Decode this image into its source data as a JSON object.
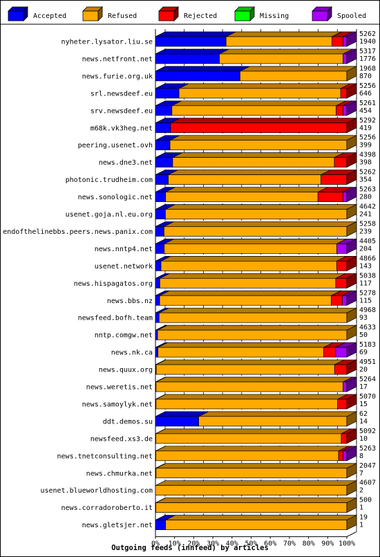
{
  "chart_data": {
    "type": "bar",
    "orientation": "horizontal",
    "stacked": true,
    "percent_axis": true,
    "xlabel": "Outgoing feeds (innfeed) by articles",
    "xticks": [
      "0%",
      "10%",
      "20%",
      "30%",
      "40%",
      "50%",
      "60%",
      "70%",
      "80%",
      "90%",
      "100%"
    ],
    "legend_position": "top",
    "legend": [
      {
        "name": "Accepted",
        "color": "#0000ff"
      },
      {
        "name": "Refused",
        "color": "#ffaa00"
      },
      {
        "name": "Rejected",
        "color": "#ff0000"
      },
      {
        "name": "Missing",
        "color": "#00ff00"
      },
      {
        "name": "Spooled",
        "color": "#aa00ff"
      }
    ],
    "rows": [
      {
        "host": "nyheter.lysator.liu.se",
        "total": 5262,
        "accepted": 1940,
        "segments_pct": [
          36.9,
          55.3,
          5.8,
          0,
          2.0
        ]
      },
      {
        "host": "news.netfront.net",
        "total": 5317,
        "accepted": 1776,
        "segments_pct": [
          33.4,
          64.6,
          0,
          0,
          2.0
        ]
      },
      {
        "host": "news.furie.org.uk",
        "total": 1968,
        "accepted": 870,
        "segments_pct": [
          44.2,
          55.8,
          0,
          0,
          0
        ]
      },
      {
        "host": "srl.newsdeef.eu",
        "total": 5256,
        "accepted": 646,
        "segments_pct": [
          12.3,
          84.5,
          3.2,
          0,
          0
        ]
      },
      {
        "host": "srv.newsdeef.eu",
        "total": 5261,
        "accepted": 454,
        "segments_pct": [
          8.6,
          85.8,
          3.6,
          0,
          2.0
        ]
      },
      {
        "host": "m68k.vk3heg.net",
        "total": 5292,
        "accepted": 419,
        "segments_pct": [
          7.9,
          0,
          92.1,
          0,
          0
        ]
      },
      {
        "host": "peering.usenet.ovh",
        "total": 5256,
        "accepted": 399,
        "segments_pct": [
          7.6,
          92.4,
          0,
          0,
          0
        ]
      },
      {
        "host": "news.dne3.net",
        "total": 4398,
        "accepted": 398,
        "segments_pct": [
          9.0,
          84.5,
          6.5,
          0,
          0
        ]
      },
      {
        "host": "photonic.trudheim.com",
        "total": 5262,
        "accepted": 354,
        "segments_pct": [
          6.7,
          79.8,
          13.5,
          0,
          0
        ]
      },
      {
        "host": "news.sonologic.net",
        "total": 5263,
        "accepted": 280,
        "segments_pct": [
          5.3,
          79.6,
          13.1,
          0,
          2.0
        ]
      },
      {
        "host": "usenet.goja.nl.eu.org",
        "total": 4642,
        "accepted": 241,
        "segments_pct": [
          5.2,
          94.8,
          0,
          0,
          0
        ]
      },
      {
        "host": "endofthelinebbs.peers.news.panix.com",
        "total": 5258,
        "accepted": 239,
        "segments_pct": [
          4.5,
          95.5,
          0,
          0,
          0
        ]
      },
      {
        "host": "news.nntp4.net",
        "total": 4405,
        "accepted": 204,
        "segments_pct": [
          4.6,
          90.1,
          0,
          0,
          5.3
        ]
      },
      {
        "host": "usenet.network",
        "total": 4866,
        "accepted": 143,
        "segments_pct": [
          2.9,
          91.8,
          5.3,
          0,
          0
        ]
      },
      {
        "host": "news.hispagatos.org",
        "total": 5038,
        "accepted": 117,
        "segments_pct": [
          2.3,
          91.9,
          5.8,
          0,
          0
        ]
      },
      {
        "host": "news.bbs.nz",
        "total": 5278,
        "accepted": 115,
        "segments_pct": [
          2.2,
          89.7,
          5.8,
          0,
          2.3
        ]
      },
      {
        "host": "newsfeed.bofh.team",
        "total": 4968,
        "accepted": 93,
        "segments_pct": [
          1.9,
          98.1,
          0,
          0,
          0
        ]
      },
      {
        "host": "nntp.comgw.net",
        "total": 4633,
        "accepted": 50,
        "segments_pct": [
          1.1,
          98.9,
          0,
          0,
          0
        ]
      },
      {
        "host": "news.nk.ca",
        "total": 5183,
        "accepted": 69,
        "segments_pct": [
          1.3,
          86.6,
          6.3,
          0,
          5.8
        ]
      },
      {
        "host": "news.quux.org",
        "total": 4951,
        "accepted": 20,
        "segments_pct": [
          0.4,
          93.2,
          6.4,
          0,
          0
        ]
      },
      {
        "host": "news.weretis.net",
        "total": 5264,
        "accepted": 17,
        "segments_pct": [
          0.3,
          97.7,
          0,
          0,
          2.0
        ]
      },
      {
        "host": "news.samoylyk.net",
        "total": 5070,
        "accepted": 15,
        "segments_pct": [
          0.3,
          94.9,
          4.8,
          0,
          0
        ]
      },
      {
        "host": "ddt.demos.su",
        "total": 62,
        "accepted": 14,
        "segments_pct": [
          22.6,
          77.4,
          0,
          0,
          0
        ]
      },
      {
        "host": "newsfeed.xs3.de",
        "total": 5092,
        "accepted": 10,
        "segments_pct": [
          0.2,
          96.9,
          2.9,
          0,
          0
        ]
      },
      {
        "host": "news.tnetconsulting.net",
        "total": 5263,
        "accepted": 8,
        "segments_pct": [
          0.2,
          95.5,
          2.3,
          0,
          2.0
        ]
      },
      {
        "host": "news.chmurka.net",
        "total": 2047,
        "accepted": 7,
        "segments_pct": [
          0.3,
          99.7,
          0,
          0,
          0
        ]
      },
      {
        "host": "usenet.blueworldhosting.com",
        "total": 4607,
        "accepted": 2,
        "segments_pct": [
          0.0,
          100.0,
          0,
          0,
          0
        ]
      },
      {
        "host": "news.corradoroberto.it",
        "total": 500,
        "accepted": 1,
        "segments_pct": [
          0.2,
          99.8,
          0,
          0,
          0
        ]
      },
      {
        "host": "news.gletsjer.net",
        "total": 19,
        "accepted": 1,
        "segments_pct": [
          5.3,
          94.7,
          0,
          0,
          0
        ]
      }
    ]
  }
}
